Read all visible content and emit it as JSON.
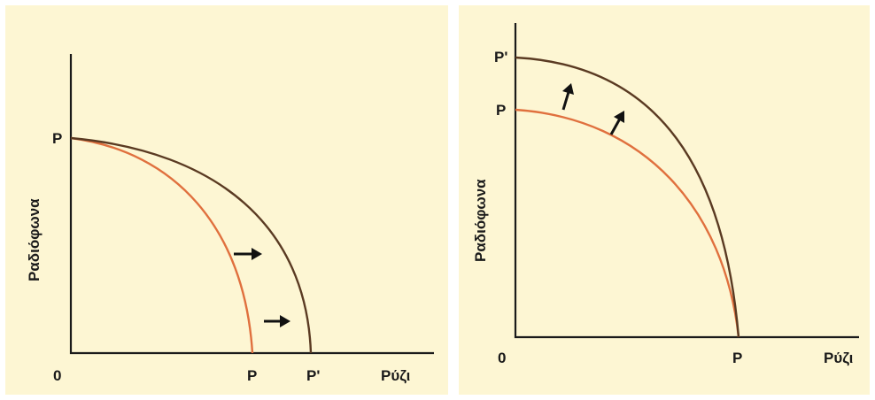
{
  "colors": {
    "background": "#fdf6d3",
    "original_curve": "#e0703e",
    "shifted_curve": "#5a3a22",
    "axis": "#1a1a1a",
    "arrow": "#111111"
  },
  "left_panel": {
    "ylabel": "Ραδιόφωνα",
    "xlabel": "Ρύζι",
    "origin": "0",
    "y_intercept_label": "P",
    "x_intercept_original": "P",
    "x_intercept_shifted": "P'"
  },
  "right_panel": {
    "ylabel": "Ραδιόφωνα",
    "xlabel": "Ρύζι",
    "origin": "0",
    "y_intercept_original": "P",
    "y_intercept_shifted": "P'",
    "x_intercept_label": "P"
  }
}
